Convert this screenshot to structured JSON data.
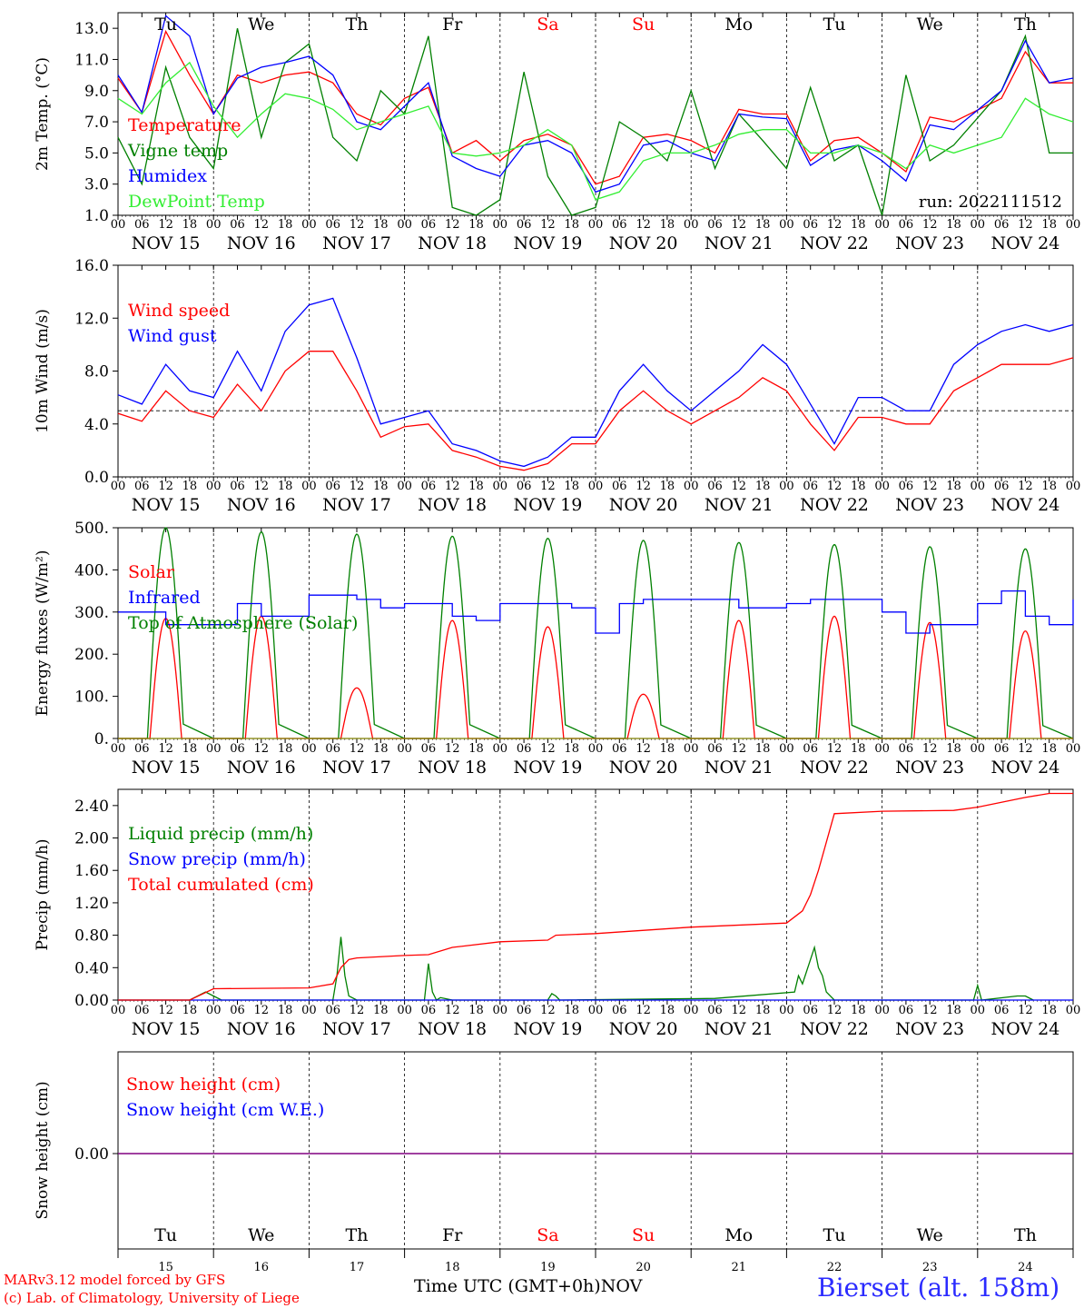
{
  "run_label": "run: 2022111512",
  "footer": {
    "model": "MARv3.12 model forced by GFS",
    "copyright": "(c) Lab. of Climatology, University of Liege",
    "time_axis": "Time UTC (GMT+0h)",
    "month": "NOV",
    "station": "Bierset (alt. 158m)"
  },
  "days": [
    "NOV 15",
    "NOV 16",
    "NOV 17",
    "NOV 18",
    "NOV 19",
    "NOV 20",
    "NOV 21",
    "NOV 22",
    "NOV 23",
    "NOV 24"
  ],
  "weekdays": [
    "Tu",
    "We",
    "Th",
    "Fr",
    "Sa",
    "Su",
    "Mo",
    "Tu",
    "We",
    "Th"
  ],
  "weekend_color": "#ff0000",
  "day_numbers": [
    "15",
    "16",
    "17",
    "18",
    "19",
    "20",
    "21",
    "22",
    "23",
    "24"
  ],
  "hour_ticks": [
    "00",
    "06",
    "12",
    "18"
  ],
  "chart_data": [
    {
      "type": "line",
      "ylabel": "2m Temp. (°C)",
      "ylim": [
        1.0,
        14.0
      ],
      "yticks": [
        "1.0",
        "3.0",
        "5.0",
        "7.0",
        "9.0",
        "11.0",
        "13.0"
      ],
      "x_unit": "hours since NOV 15 00 UTC",
      "grid": "vertical dashed at day boundaries",
      "legend_placement": "left",
      "series": [
        {
          "name": "Temperature",
          "color": "#ff0000",
          "x": [
            0,
            6,
            12,
            18,
            24,
            30,
            36,
            42,
            48,
            54,
            60,
            66,
            72,
            78,
            84,
            90,
            96,
            102,
            108,
            114,
            120,
            126,
            132,
            138,
            144,
            150,
            156,
            162,
            168,
            174,
            180,
            186,
            192,
            198,
            204,
            210,
            222,
            228,
            234,
            240
          ],
          "values": [
            9.8,
            7.6,
            12.8,
            10.0,
            7.5,
            10.0,
            9.5,
            10.0,
            10.2,
            9.5,
            7.5,
            6.8,
            8.5,
            9.2,
            5.0,
            5.8,
            4.5,
            5.8,
            6.2,
            5.5,
            3.0,
            3.5,
            6.0,
            6.2,
            5.8,
            5.0,
            7.8,
            7.5,
            7.5,
            4.5,
            5.8,
            6.0,
            5.0,
            3.8,
            7.3,
            7.0,
            8.5,
            11.5,
            9.5,
            9.5
          ]
        },
        {
          "name": "Vigne temp",
          "color": "#008000",
          "x": [
            0,
            6,
            12,
            18,
            24,
            30,
            36,
            42,
            48,
            54,
            60,
            66,
            72,
            78,
            84,
            90,
            96,
            102,
            108,
            114,
            120,
            126,
            132,
            138,
            144,
            150,
            156,
            162,
            168,
            174,
            180,
            186,
            192,
            198,
            204,
            210,
            222,
            228,
            234,
            240
          ],
          "values": [
            6.0,
            3.0,
            10.5,
            6.0,
            4.0,
            13.0,
            6.0,
            10.8,
            12.0,
            6.0,
            4.5,
            9.0,
            7.5,
            12.5,
            1.5,
            1.0,
            2.0,
            10.2,
            3.5,
            1.0,
            1.5,
            7.0,
            6.0,
            4.5,
            9.0,
            4.0,
            7.5,
            5.8,
            4.0,
            9.2,
            4.5,
            5.5,
            1.0,
            10.0,
            4.5,
            5.5,
            9.0,
            12.5,
            5.0,
            5.0
          ]
        },
        {
          "name": "Humidex",
          "color": "#0000ff",
          "x": [
            0,
            6,
            12,
            18,
            24,
            30,
            36,
            42,
            48,
            54,
            60,
            66,
            72,
            78,
            84,
            90,
            96,
            102,
            108,
            114,
            120,
            126,
            132,
            138,
            144,
            150,
            156,
            162,
            168,
            174,
            180,
            186,
            192,
            198,
            204,
            210,
            222,
            228,
            234,
            240
          ],
          "values": [
            10.0,
            7.6,
            13.8,
            12.5,
            7.5,
            9.8,
            10.5,
            10.8,
            11.2,
            10.0,
            7.0,
            6.5,
            8.0,
            9.5,
            4.8,
            4.0,
            3.5,
            5.5,
            5.8,
            5.0,
            2.5,
            3.0,
            5.5,
            5.8,
            5.0,
            4.5,
            7.5,
            7.3,
            7.2,
            4.2,
            5.2,
            5.5,
            4.5,
            3.2,
            6.8,
            6.5,
            9.0,
            12.2,
            9.5,
            9.8
          ]
        },
        {
          "name": "DewPoint Temp",
          "color": "#33ee33",
          "x": [
            0,
            6,
            12,
            18,
            24,
            30,
            36,
            42,
            48,
            54,
            60,
            66,
            72,
            78,
            84,
            90,
            96,
            102,
            108,
            114,
            120,
            126,
            132,
            138,
            144,
            150,
            156,
            162,
            168,
            174,
            180,
            186,
            192,
            198,
            204,
            210,
            222,
            228,
            234,
            240
          ],
          "values": [
            8.5,
            7.5,
            9.5,
            10.8,
            8.0,
            6.0,
            7.5,
            8.8,
            8.5,
            7.8,
            6.5,
            7.0,
            7.5,
            8.0,
            5.0,
            4.8,
            5.0,
            5.5,
            6.5,
            5.5,
            2.0,
            2.5,
            4.5,
            5.0,
            5.0,
            5.5,
            6.2,
            6.5,
            6.5,
            5.0,
            5.0,
            5.5,
            5.0,
            4.0,
            5.5,
            5.0,
            6.0,
            8.5,
            7.5,
            7.0
          ]
        }
      ]
    },
    {
      "type": "line",
      "ylabel": "10m Wind (m/s)",
      "ylim": [
        0.0,
        16.0
      ],
      "yticks": [
        "0.0",
        "4.0",
        "8.0",
        "12.0",
        "16.0"
      ],
      "reference_line": 5.0,
      "legend_placement": "left",
      "series": [
        {
          "name": "Wind speed",
          "color": "#ff0000",
          "x": [
            0,
            6,
            12,
            18,
            24,
            30,
            36,
            42,
            48,
            54,
            60,
            66,
            72,
            78,
            84,
            90,
            96,
            102,
            108,
            114,
            120,
            126,
            132,
            138,
            144,
            150,
            156,
            162,
            168,
            174,
            180,
            186,
            192,
            198,
            204,
            210,
            216,
            222,
            228,
            234,
            240
          ],
          "values": [
            4.8,
            4.2,
            6.5,
            5.0,
            4.5,
            7.0,
            5.0,
            8.0,
            9.5,
            9.5,
            6.5,
            3.0,
            3.8,
            4.0,
            2.0,
            1.5,
            0.8,
            0.5,
            1.0,
            2.5,
            2.5,
            5.0,
            6.5,
            5.0,
            4.0,
            5.0,
            6.0,
            7.5,
            6.5,
            4.0,
            2.0,
            4.5,
            4.5,
            4.0,
            4.0,
            6.5,
            7.5,
            8.5,
            8.5,
            8.5,
            9.0
          ]
        },
        {
          "name": "Wind gust",
          "color": "#0000ff",
          "x": [
            0,
            6,
            12,
            18,
            24,
            30,
            36,
            42,
            48,
            54,
            60,
            66,
            72,
            78,
            84,
            90,
            96,
            102,
            108,
            114,
            120,
            126,
            132,
            138,
            144,
            150,
            156,
            162,
            168,
            174,
            180,
            186,
            192,
            198,
            204,
            210,
            216,
            222,
            228,
            234,
            240
          ],
          "values": [
            6.2,
            5.5,
            8.5,
            6.5,
            6.0,
            9.5,
            6.5,
            11.0,
            13.0,
            13.5,
            9.0,
            4.0,
            4.5,
            5.0,
            2.5,
            2.0,
            1.2,
            0.8,
            1.5,
            3.0,
            3.0,
            6.5,
            8.5,
            6.5,
            5.0,
            6.5,
            8.0,
            10.0,
            8.5,
            5.5,
            2.5,
            6.0,
            6.0,
            5.0,
            5.0,
            8.5,
            10.0,
            11.0,
            11.5,
            11.0,
            11.5
          ]
        }
      ]
    },
    {
      "type": "line",
      "ylabel": "Energy fluxes (W/m²)",
      "ylim": [
        0,
        500
      ],
      "yticks": [
        "0.",
        "100.",
        "200.",
        "300.",
        "400.",
        "500."
      ],
      "legend_placement": "left",
      "infrared_x": [
        0,
        12,
        24,
        30,
        36,
        48,
        60,
        66,
        72,
        84,
        90,
        96,
        108,
        114,
        120,
        126,
        132,
        144,
        156,
        168,
        174,
        180,
        192,
        198,
        204,
        216,
        222,
        228,
        234,
        240
      ],
      "infrared_values": [
        300,
        270,
        270,
        320,
        290,
        340,
        330,
        310,
        320,
        290,
        280,
        320,
        320,
        310,
        250,
        320,
        330,
        330,
        310,
        320,
        330,
        330,
        300,
        250,
        270,
        320,
        350,
        290,
        270,
        330
      ],
      "solar_peaks": [
        285,
        290,
        120,
        280,
        265,
        105,
        280,
        290,
        275,
        255
      ],
      "toa_peaks": [
        500,
        490,
        485,
        480,
        475,
        470,
        465,
        460,
        455,
        450
      ],
      "series_names": [
        "Solar",
        "Infrared",
        "Top of Atmosphere (Solar)"
      ],
      "colors": {
        "solar": "#ff0000",
        "infrared": "#0000ff",
        "toa": "#008000"
      }
    },
    {
      "type": "line",
      "ylabel": "Precip (mm/h)",
      "ylim": [
        0.0,
        2.6
      ],
      "yticks": [
        "0.00",
        "0.40",
        "0.80",
        "1.20",
        "1.60",
        "2.00",
        "2.40"
      ],
      "legend_placement": "left",
      "series": [
        {
          "name": "Liquid precip (mm/h)",
          "color": "#008000",
          "x": [
            0,
            18,
            22,
            24,
            26,
            54,
            55,
            56,
            57,
            58,
            60,
            68,
            77,
            78,
            79,
            80,
            81,
            84,
            108,
            109,
            110,
            111,
            150,
            170,
            171,
            172,
            174,
            175,
            176,
            177,
            178,
            180,
            215,
            216,
            217,
            226,
            228,
            230
          ],
          "values": [
            0,
            0,
            0.1,
            0.05,
            0,
            0,
            0.3,
            0.78,
            0.3,
            0.05,
            0,
            0,
            0,
            0.45,
            0.1,
            0,
            0.03,
            0,
            0,
            0.08,
            0.05,
            0,
            0.02,
            0.1,
            0.3,
            0.2,
            0.5,
            0.65,
            0.4,
            0.3,
            0.1,
            0,
            0,
            0.18,
            0,
            0.05,
            0.05,
            0
          ]
        },
        {
          "name": "Snow precip (mm/h)",
          "color": "#0000ff",
          "x": [
            0,
            240
          ],
          "values": [
            0,
            0
          ]
        },
        {
          "name": "Total cumulated (cm)",
          "color": "#ff0000",
          "x": [
            0,
            18,
            24,
            48,
            54,
            56,
            58,
            60,
            72,
            78,
            84,
            96,
            108,
            110,
            120,
            144,
            168,
            172,
            174,
            176,
            180,
            192,
            210,
            216,
            228,
            234,
            240
          ],
          "values": [
            0,
            0,
            0.14,
            0.15,
            0.2,
            0.4,
            0.5,
            0.52,
            0.55,
            0.56,
            0.65,
            0.72,
            0.74,
            0.8,
            0.82,
            0.9,
            0.95,
            1.1,
            1.3,
            1.6,
            2.3,
            2.33,
            2.34,
            2.38,
            2.5,
            2.55,
            2.55
          ]
        }
      ]
    },
    {
      "type": "line",
      "ylabel": "Snow height (cm)",
      "yticks": [
        "0.00"
      ],
      "legend_placement": "left",
      "series": [
        {
          "name": "Snow height (cm)",
          "color": "#ff0000",
          "x": [
            0,
            240
          ],
          "values": [
            0,
            0
          ]
        },
        {
          "name": "Snow height (cm W.E.)",
          "color": "#0000ff",
          "x": [
            0,
            240
          ],
          "values": [
            0,
            0
          ]
        }
      ]
    }
  ]
}
